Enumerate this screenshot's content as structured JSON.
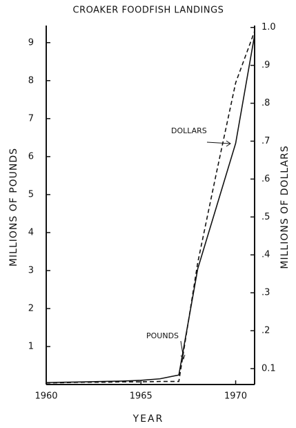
{
  "chart_data": {
    "type": "line",
    "title": "CROAKER FOODFISH LANDINGS",
    "xlabel": "YEAR",
    "ylabel": "MILLIONS OF POUNDS",
    "y2label": "MILLIONS OF DOLLARS",
    "x": [
      1960,
      1961,
      1962,
      1963,
      1964,
      1965,
      1966,
      1967,
      1968,
      1969,
      1970,
      1971
    ],
    "series": [
      {
        "name": "POUNDS",
        "color": "#111111",
        "dash": false,
        "values": [
          0.05,
          0.06,
          0.07,
          0.08,
          0.09,
          0.11,
          0.15,
          0.25,
          3.05,
          4.7,
          6.35,
          9.2
        ]
      },
      {
        "name": "DOLLARS",
        "color": "#111111",
        "dash": true,
        "axis": "y2",
        "values": [
          0.062,
          0.063,
          0.064,
          0.064,
          0.065,
          0.065,
          0.066,
          0.066,
          0.38,
          0.62,
          0.854,
          0.99
        ]
      }
    ],
    "xlim": [
      1960,
      1971
    ],
    "xticks": [
      1960,
      1965,
      1970
    ],
    "ylim": [
      0,
      9.45
    ],
    "yticks": [
      1,
      2,
      3,
      4,
      5,
      6,
      7,
      8,
      9
    ],
    "y2lim": [
      0.058,
      1.005
    ],
    "y2ticks": [
      {
        "value": 0.1,
        "label": "0.1"
      },
      {
        "value": 0.2,
        "label": ".2"
      },
      {
        "value": 0.3,
        "label": ".3"
      },
      {
        "value": 0.4,
        "label": ".4"
      },
      {
        "value": 0.5,
        "label": ".5"
      },
      {
        "value": 0.6,
        "label": ".6"
      },
      {
        "value": 0.7,
        "label": ".7"
      },
      {
        "value": 0.8,
        "label": ".8"
      },
      {
        "value": 0.9,
        "label": ".9"
      },
      {
        "value": 1.0,
        "label": "1.0"
      }
    ]
  }
}
